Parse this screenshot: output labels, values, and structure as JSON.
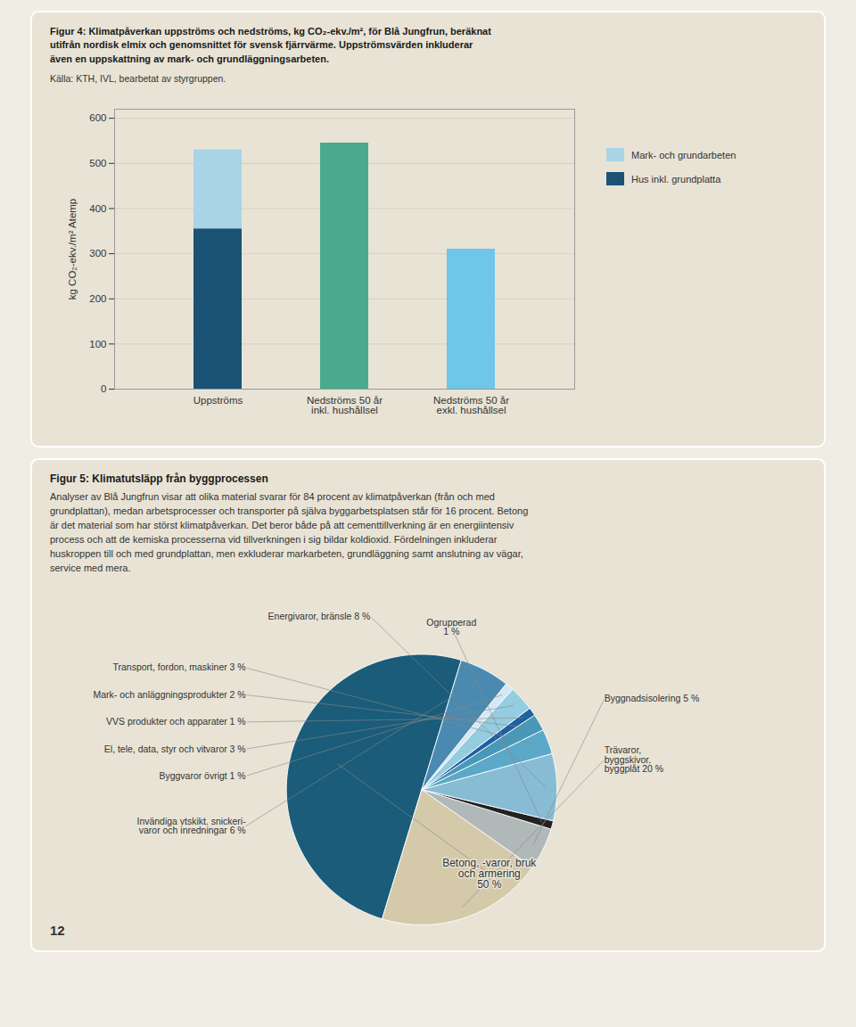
{
  "chart_data": [
    {
      "type": "bar",
      "title": "Figur 4: Klimatpåverkan uppströms och nedströms, kg CO₂-ekv./m², för Blå Jungfrun, beräknat\nutifrån nordisk elmix och genomsnittet för svensk fjärrvärme. Uppströmsvärden inkluderar\näven en uppskattning av mark- och grundläggningsarbeten.",
      "subtitle": "Källa: KTH, IVL, bearbetat av styrgruppen.",
      "categories": [
        "Uppströms",
        "Nedströms 50 år\ninkl. hushållsel",
        "Nedströms 50 år\nexkl. hushållsel"
      ],
      "series": [
        {
          "name": "Mark- och grundarbeten",
          "color": "#a8d4e6",
          "colors": [
            "#a8d4e6",
            "#4aab8c",
            "#6ec6e8"
          ],
          "values": [
            175,
            545,
            310
          ]
        },
        {
          "name": "Hus inkl. grundplatta",
          "color": "#1a5276",
          "values": [
            355,
            0,
            0
          ]
        }
      ],
      "stacked": true,
      "ylabel": "kg CO₂-ekv./m² Atemp",
      "ylim": [
        0,
        620
      ],
      "yticks": [
        0,
        100,
        200,
        300,
        400,
        500,
        600
      ],
      "grid": true,
      "legend": "right"
    },
    {
      "type": "pie",
      "title": "Figur 5: Klimatutsläpp från byggprocessen",
      "subtitle": "Analyser av Blå Jungfrun visar att olika material svarar för 84 procent av klimatpåverkan (från och med\ngrundplattan), medan arbetsprocesser och transporter på själva byggarbetsplatsen står för 16 procent. Betong\när det material som har störst klimatpåverkan. Det beror både på att cementtillverkning är en energiintensiv\nprocess och att de kemiska processerna vid tillverkningen i sig bildar koldioxid. Fördelningen inkluderar\nhuskroppen till och med grundplattan, men exkluderar markarbeten, grundläggning samt anslutning av vägar,\nservice med mera.",
      "categories": [
        "Betong, -varor, bruk\noch armering\n50 %",
        "Trävaror,\nbyggskivor,\nbyggplåt 20 %",
        "Byggnadsisolering 5 %",
        "Ogrupperad\n1 %",
        "Energivaror, bränsle 8 %",
        "Transport, fordon, maskiner 3 %",
        "Mark- och anläggningsprodukter 2 %",
        "VVS produkter och apparater 1 %",
        "El, tele, data, styr och vitvaror 3 %",
        "Byggvaror övrigt 1 %",
        "Invändiga ytskikt, snickeri-\nvaror och inredningar 6 %"
      ],
      "values": [
        50,
        20,
        5,
        1,
        8,
        3,
        2,
        1,
        3,
        1,
        6
      ],
      "colors": [
        "#1a5c7a",
        "#d4c9a8",
        "#b0b8b8",
        "#222222",
        "#87bcd4",
        "#5ba8c8",
        "#4898b8",
        "#2060a0",
        "#94cce0",
        "#d4e8f4",
        "#4a8ab0"
      ],
      "annotations": [
        "12"
      ]
    }
  ]
}
